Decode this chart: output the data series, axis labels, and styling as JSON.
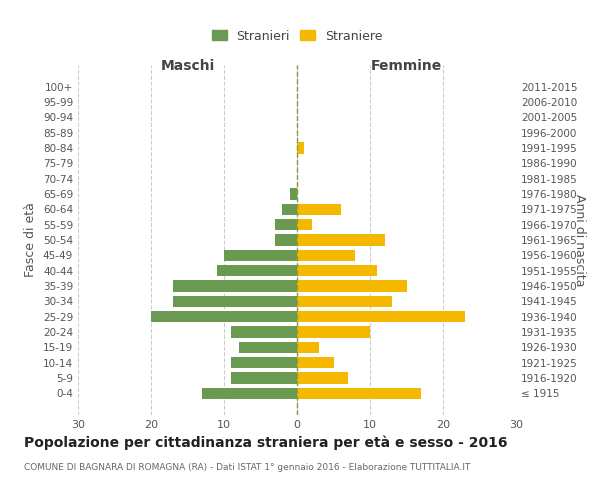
{
  "age_groups": [
    "100+",
    "95-99",
    "90-94",
    "85-89",
    "80-84",
    "75-79",
    "70-74",
    "65-69",
    "60-64",
    "55-59",
    "50-54",
    "45-49",
    "40-44",
    "35-39",
    "30-34",
    "25-29",
    "20-24",
    "15-19",
    "10-14",
    "5-9",
    "0-4"
  ],
  "birth_years": [
    "≤ 1915",
    "1916-1920",
    "1921-1925",
    "1926-1930",
    "1931-1935",
    "1936-1940",
    "1941-1945",
    "1946-1950",
    "1951-1955",
    "1956-1960",
    "1961-1965",
    "1966-1970",
    "1971-1975",
    "1976-1980",
    "1981-1985",
    "1986-1990",
    "1991-1995",
    "1996-2000",
    "2001-2005",
    "2006-2010",
    "2011-2015"
  ],
  "maschi": [
    0,
    0,
    0,
    0,
    0,
    0,
    0,
    1,
    2,
    3,
    3,
    10,
    11,
    17,
    17,
    20,
    9,
    8,
    9,
    9,
    13
  ],
  "femmine": [
    0,
    0,
    0,
    0,
    1,
    0,
    0,
    0,
    6,
    2,
    12,
    8,
    11,
    15,
    13,
    23,
    10,
    3,
    5,
    7,
    17
  ],
  "color_maschi": "#6a9a51",
  "color_femmine": "#f5b800",
  "title": "Popolazione per cittadinanza straniera per età e sesso - 2016",
  "subtitle": "COMUNE DI BAGNARA DI ROMAGNA (RA) - Dati ISTAT 1° gennaio 2016 - Elaborazione TUTTITALIA.IT",
  "xlabel_left": "Maschi",
  "xlabel_right": "Femmine",
  "ylabel_left": "Fasce di età",
  "ylabel_right": "Anni di nascita",
  "legend_maschi": "Stranieri",
  "legend_femmine": "Straniere",
  "xlim": 30,
  "background_color": "#ffffff",
  "grid_color": "#cccccc",
  "title_fontsize": 10,
  "subtitle_fontsize": 6.5,
  "bar_height": 0.75
}
